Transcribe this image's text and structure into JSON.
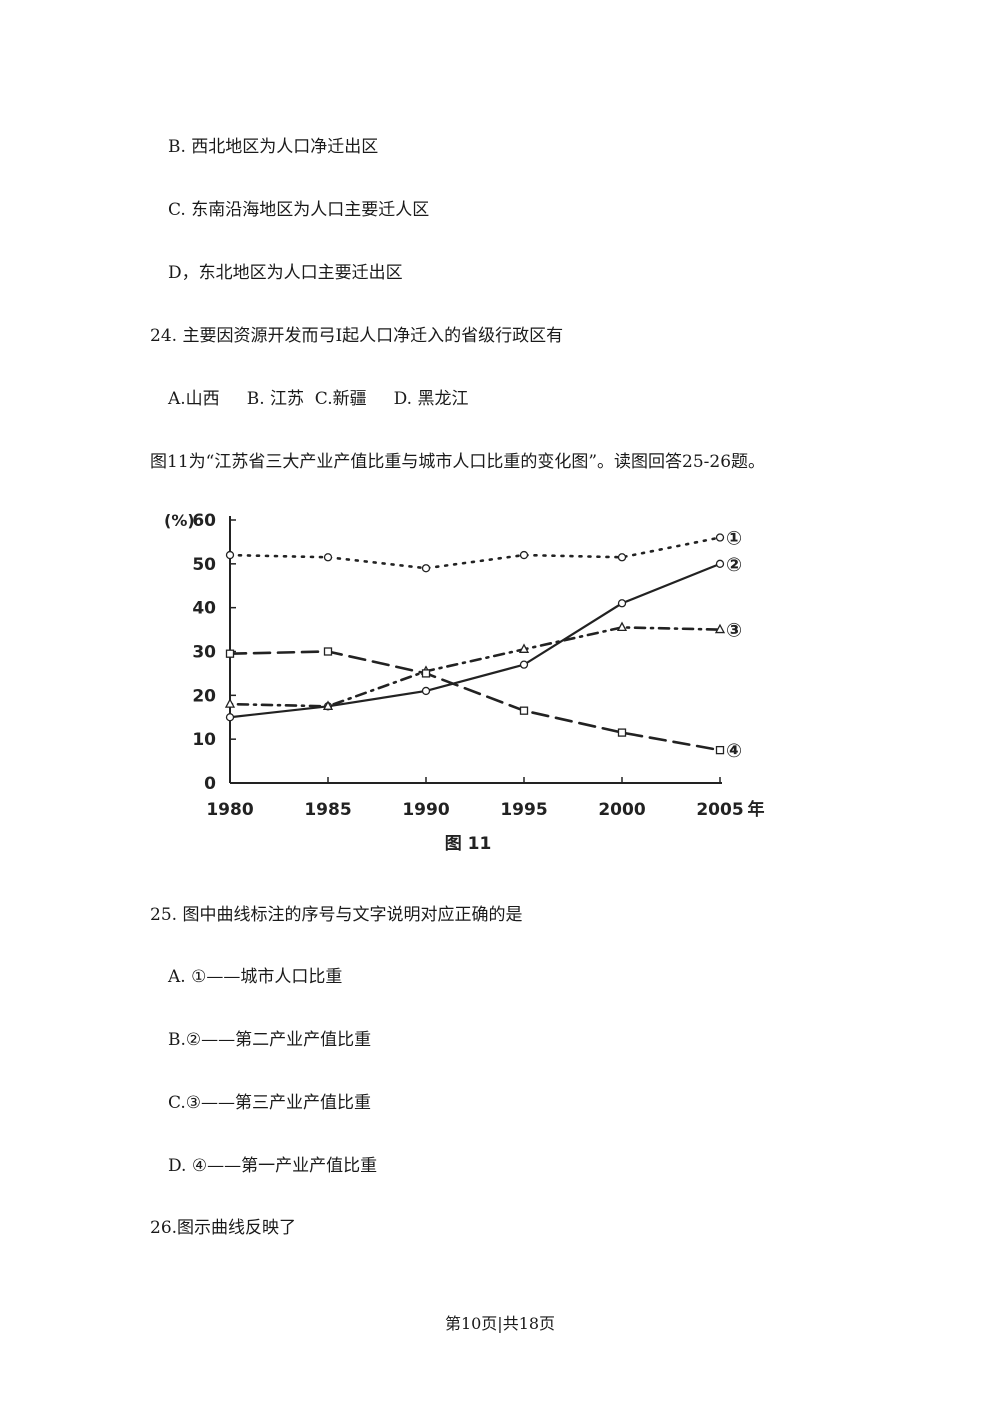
{
  "lines": {
    "q23b": "B. 西北地区为人口净迁出区",
    "q23c": "C. 东南沿海地区为人口主要迁人区",
    "q23d": "D，东北地区为人口主要迁出区",
    "q24": "24. 主要因资源开发而弓I起人口净迁入的省级行政区有",
    "q24opts": "A.山西     B. 江苏  C.新疆     D. 黑龙江",
    "intro": "图11为“江苏省三大产业产值比重与城市人口比重的变化图”。读图回答25-26题。",
    "q25": "25. 图中曲线标注的序号与文字说明对应正确的是",
    "q25a": "A. ①——城市人口比重",
    "q25b": "B.②——第二产业产值比重",
    "q25c": "C.③——第三产业产值比重",
    "q25d": "D. ④——第一产业产值比重",
    "q26": "26.图示曲线反映了"
  },
  "footer": "第10页|共18页",
  "chart_data": {
    "type": "line",
    "title": "图 11",
    "ylabel": "(%)",
    "x_unit": "年",
    "x": [
      1980,
      1985,
      1990,
      1995,
      2000,
      2005
    ],
    "x_ticks": [
      "1980",
      "1985",
      "1990",
      "1995",
      "2000",
      "2005"
    ],
    "y_ticks": [
      "0",
      "10",
      "20",
      "30",
      "40",
      "50",
      "60"
    ],
    "ylim": [
      0,
      60
    ],
    "series": [
      {
        "name": "①",
        "style": "dotted",
        "values": [
          52,
          51.5,
          49,
          52,
          51.5,
          56
        ]
      },
      {
        "name": "②",
        "style": "solid",
        "values": [
          15,
          17.5,
          21,
          27,
          41,
          50
        ]
      },
      {
        "name": "③",
        "style": "dash-dot",
        "values": [
          18,
          17.5,
          25.5,
          30.5,
          35.5,
          35
        ]
      },
      {
        "name": "④",
        "style": "dashed",
        "values": [
          29.5,
          30,
          25,
          16.5,
          11.5,
          7.5
        ]
      }
    ]
  }
}
